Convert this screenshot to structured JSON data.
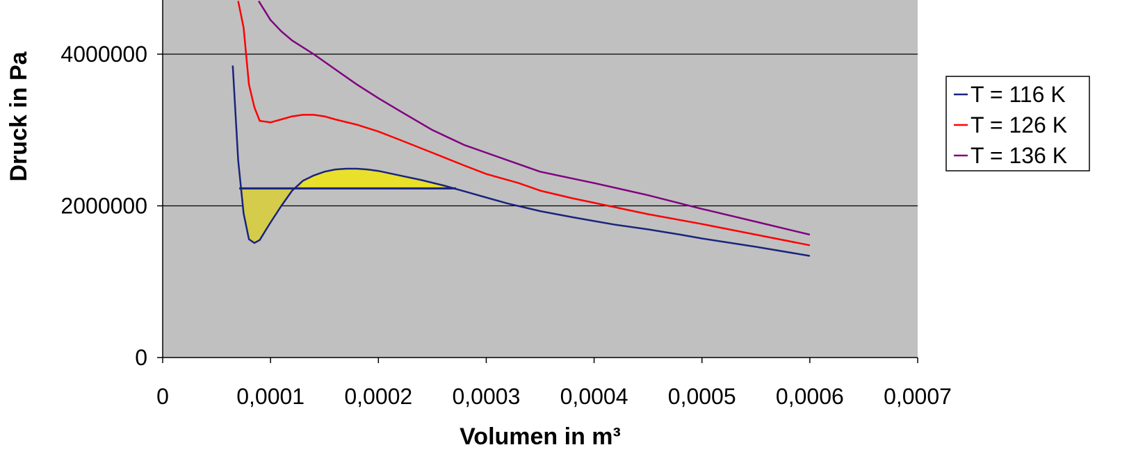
{
  "chart_data": {
    "type": "line",
    "title": "",
    "xlabel": "Volumen in m³",
    "ylabel": "Druck in Pa",
    "xlim": [
      0,
      0.0007
    ],
    "ylim": [
      0,
      4400000
    ],
    "x_ticks": [
      {
        "value": 0,
        "label": "0"
      },
      {
        "value": 0.0001,
        "label": "0,0001"
      },
      {
        "value": 0.0002,
        "label": "0,0002"
      },
      {
        "value": 0.0003,
        "label": "0,0003"
      },
      {
        "value": 0.0004,
        "label": "0,0004"
      },
      {
        "value": 0.0005,
        "label": "0,0005"
      },
      {
        "value": 0.0006,
        "label": "0,0006"
      },
      {
        "value": 0.0007,
        "label": "0,0007"
      }
    ],
    "y_ticks": [
      {
        "value": 0,
        "label": "0"
      },
      {
        "value": 2000000,
        "label": "2000000"
      },
      {
        "value": 4000000,
        "label": "4000000"
      }
    ],
    "grid": "horizontal",
    "plot_background": "#c0c0c0",
    "legend_position": "right",
    "series": [
      {
        "name": "T = 116 K",
        "color": "#1a237e",
        "x": [
          6.5e-05,
          7e-05,
          7.5e-05,
          8e-05,
          8.5e-05,
          9e-05,
          0.0001,
          0.00011,
          0.00012,
          0.00013,
          0.00014,
          0.00015,
          0.00016,
          0.00017,
          0.00018,
          0.00019,
          0.0002,
          0.00022,
          0.00024,
          0.00026,
          0.00028,
          0.0003,
          0.00032,
          0.00035,
          0.00038,
          0.0004,
          0.00042,
          0.00045,
          0.00048,
          0.0005,
          0.00055,
          0.0006
        ],
        "y": [
          3850000,
          2600000,
          1900000,
          1560000,
          1510000,
          1550000,
          1780000,
          2000000,
          2200000,
          2330000,
          2400000,
          2450000,
          2480000,
          2490000,
          2490000,
          2480000,
          2460000,
          2400000,
          2340000,
          2270000,
          2190000,
          2110000,
          2030000,
          1930000,
          1850000,
          1800000,
          1750000,
          1690000,
          1620000,
          1570000,
          1460000,
          1340000
        ]
      },
      {
        "name": "T = 126 K",
        "color": "#ff0000",
        "x": [
          7e-05,
          7.5e-05,
          8e-05,
          8.5e-05,
          9e-05,
          0.0001,
          0.00011,
          0.00012,
          0.00013,
          0.00014,
          0.00015,
          0.00016,
          0.00018,
          0.0002,
          0.00022,
          0.00025,
          0.00028,
          0.0003,
          0.00033,
          0.00035,
          0.00038,
          0.0004,
          0.00043,
          0.00045,
          0.0005,
          0.00055,
          0.0006
        ],
        "y": [
          4700000,
          4350000,
          3600000,
          3300000,
          3120000,
          3100000,
          3140000,
          3180000,
          3200000,
          3200000,
          3180000,
          3140000,
          3070000,
          2980000,
          2870000,
          2700000,
          2530000,
          2420000,
          2300000,
          2200000,
          2100000,
          2040000,
          1950000,
          1890000,
          1760000,
          1620000,
          1480000
        ]
      },
      {
        "name": "T = 136 K",
        "color": "#800080",
        "x": [
          8.9e-05,
          0.0001,
          0.00011,
          0.00012,
          0.00014,
          0.00016,
          0.00018,
          0.0002,
          0.00022,
          0.00025,
          0.00028,
          0.0003,
          0.00033,
          0.00035,
          0.00038,
          0.0004,
          0.00045,
          0.0005,
          0.00055,
          0.0006
        ],
        "y": [
          4700000,
          4450000,
          4300000,
          4180000,
          4000000,
          3800000,
          3600000,
          3420000,
          3250000,
          3000000,
          2800000,
          2700000,
          2550000,
          2450000,
          2360000,
          2300000,
          2140000,
          1960000,
          1790000,
          1620000
        ]
      }
    ],
    "maxwell_line": {
      "color": "#1a237e",
      "x": [
        7.1e-05,
        0.000272
      ],
      "y": [
        2230000,
        2230000
      ]
    },
    "shaded_areas": [
      {
        "color": "#d4cc4a",
        "x_range": [
          7.1e-05,
          0.000128
        ]
      },
      {
        "color": "#e8e02a",
        "x_range": [
          0.000128,
          0.000272
        ]
      }
    ]
  }
}
